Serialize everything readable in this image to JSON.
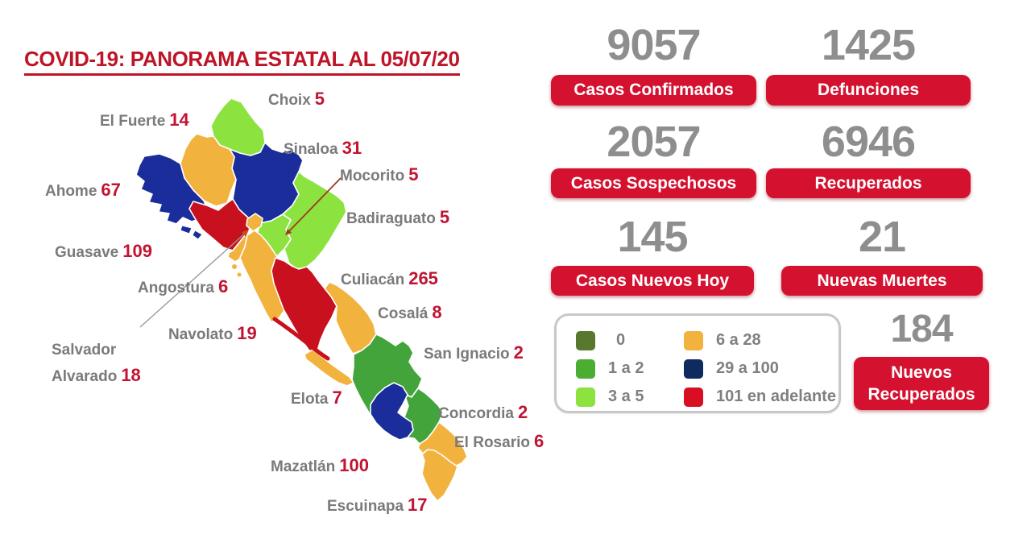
{
  "title": "COVID-19: PANORAMA ESTATAL AL 05/07/20",
  "stats": [
    {
      "id": "casos_confirmados",
      "value": "9057",
      "label": "Casos Confirmados"
    },
    {
      "id": "defunciones",
      "value": "1425",
      "label": "Defunciones"
    },
    {
      "id": "casos_sospechosos",
      "value": "2057",
      "label": "Casos Sospechosos"
    },
    {
      "id": "recuperados",
      "value": "6946",
      "label": "Recuperados"
    },
    {
      "id": "casos_nuevos_hoy",
      "value": "145",
      "label": "Casos Nuevos Hoy"
    },
    {
      "id": "nuevas_muertes",
      "value": "21",
      "label": "Nuevas Muertes"
    },
    {
      "id": "nuevos_recuperados",
      "value": "184",
      "label": "Nuevos Recuperados"
    }
  ],
  "legend": [
    {
      "label": "0",
      "color": "#58782E"
    },
    {
      "label": "1 a 2",
      "color": "#4CAD33"
    },
    {
      "label": "3 a 5",
      "color": "#8CE23E"
    },
    {
      "label": "6 a 28",
      "color": "#F2B23E"
    },
    {
      "label": "29 a 100",
      "color": "#0F2A5F"
    },
    {
      "label": "101 en adelante",
      "color": "#D80E23"
    }
  ],
  "map": {
    "municipalities": [
      {
        "id": "choix",
        "name": "Choix",
        "cases": 5
      },
      {
        "id": "el_fuerte",
        "name": "El Fuerte",
        "cases": 14
      },
      {
        "id": "ahome",
        "name": "Ahome",
        "cases": 67
      },
      {
        "id": "sinaloa_mun",
        "name": "Sinaloa",
        "cases": 31
      },
      {
        "id": "guasave",
        "name": "Guasave",
        "cases": 109
      },
      {
        "id": "mocorito",
        "name": "Mocorito",
        "cases": 5
      },
      {
        "id": "badiraguato",
        "name": "Badiraguato",
        "cases": 5
      },
      {
        "id": "angostura",
        "name": "Angostura",
        "cases": 6
      },
      {
        "id": "salvador_alvarado",
        "name": "Salvador Alvarado",
        "cases": 18
      },
      {
        "id": "navolato",
        "name": "Navolato",
        "cases": 19
      },
      {
        "id": "culiacan",
        "name": "Culiacán",
        "cases": 265
      },
      {
        "id": "cosala",
        "name": "Cosalá",
        "cases": 8
      },
      {
        "id": "elota",
        "name": "Elota",
        "cases": 7
      },
      {
        "id": "san_ignacio",
        "name": "San Ignacio",
        "cases": 2
      },
      {
        "id": "mazatlan",
        "name": "Mazatlán",
        "cases": 100
      },
      {
        "id": "concordia",
        "name": "Concordia",
        "cases": 2
      },
      {
        "id": "el_rosario",
        "name": "El Rosario",
        "cases": 6
      },
      {
        "id": "escuinapa",
        "name": "Escuinapa",
        "cases": 17
      }
    ]
  },
  "chart_data": {
    "type": "choropleth-map",
    "title": "COVID-19: PANORAMA ESTATAL AL 05/07/20",
    "categories": [
      "Choix",
      "El Fuerte",
      "Ahome",
      "Sinaloa",
      "Guasave",
      "Mocorito",
      "Badiraguato",
      "Angostura",
      "Salvador Alvarado",
      "Navolato",
      "Culiacán",
      "Cosalá",
      "Elota",
      "San Ignacio",
      "Mazatlán",
      "Concordia",
      "El Rosario",
      "Escuinapa"
    ],
    "values": [
      5,
      14,
      67,
      31,
      109,
      5,
      5,
      6,
      18,
      19,
      265,
      8,
      7,
      2,
      100,
      2,
      6,
      17
    ],
    "legend_buckets": [
      "0",
      "1 a 2",
      "3 a 5",
      "6 a 28",
      "29 a 100",
      "101 en adelante"
    ],
    "totals": {
      "casos_confirmados": 9057,
      "defunciones": 1425,
      "casos_sospechosos": 2057,
      "recuperados": 6946,
      "casos_nuevos_hoy": 145,
      "nuevas_muertes": 21,
      "nuevos_recuperados": 184
    }
  },
  "colors": {
    "title_red": "#BE1428",
    "pill_red": "#D41230",
    "stat_number_gray": "#8E8E8E",
    "label_gray": "#7A7A7A",
    "value_red": "#C01432",
    "map_navy": "#1B2D9B",
    "map_green": "#42A43A",
    "map_red": "#C8101E"
  }
}
